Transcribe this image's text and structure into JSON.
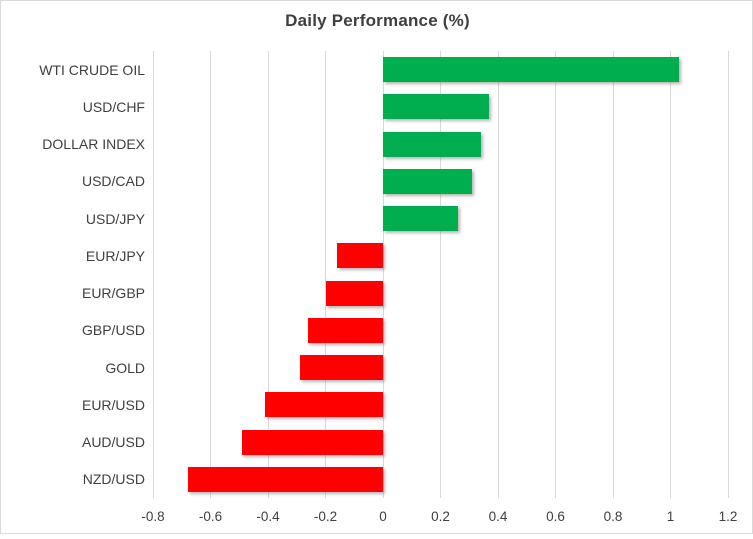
{
  "chart_data": {
    "type": "bar",
    "orientation": "horizontal",
    "title": "Daily Performance (%)",
    "categories": [
      "WTI CRUDE OIL",
      "USD/CHF",
      "DOLLAR INDEX",
      "USD/CAD",
      "USD/JPY",
      "EUR/JPY",
      "EUR/GBP",
      "GBP/USD",
      "GOLD",
      "EUR/USD",
      "AUD/USD",
      "NZD/USD"
    ],
    "values": [
      1.03,
      0.37,
      0.34,
      0.31,
      0.26,
      -0.16,
      -0.2,
      -0.26,
      -0.29,
      -0.41,
      -0.49,
      -0.68
    ],
    "xlabel": "",
    "ylabel": "",
    "xlim": [
      -0.8,
      1.2
    ],
    "xticks": [
      -0.8,
      -0.6,
      -0.4,
      -0.2,
      0,
      0.2,
      0.4,
      0.6,
      0.8,
      1,
      1.2
    ],
    "xtick_labels": [
      "-0.8",
      "-0.6",
      "-0.4",
      "-0.2",
      "0",
      "0.2",
      "0.4",
      "0.6",
      "0.8",
      "1",
      "1.2"
    ],
    "grid": true,
    "legend": false,
    "colors": {
      "positive": "#00AE50",
      "negative": "#FF0000",
      "gridline": "#D9D9D9",
      "text": "#404040",
      "frame_border": "#D9D9D9",
      "background": "#FFFFFF"
    }
  }
}
